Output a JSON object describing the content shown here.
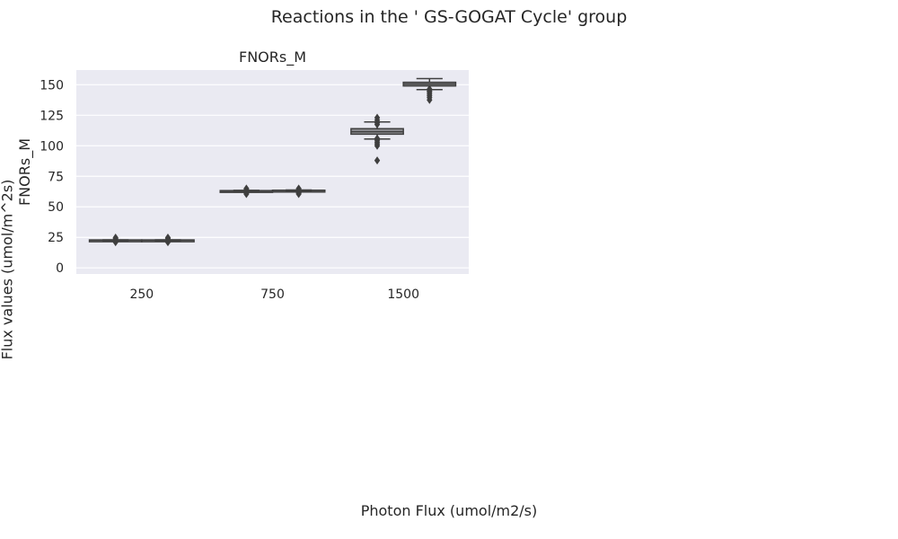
{
  "figure": {
    "suptitle": "Reactions in the ' GS-GOGAT Cycle' group",
    "xlabel": "Photon Flux (umol/m2/s)",
    "ylabel": "Flux values (umol/m^2s)"
  },
  "colors": {
    "panel_background": "#EAEAF2",
    "grid": "#FFFFFF",
    "box_edge": "#3F3F3F",
    "text": "#262626"
  },
  "chart_data": {
    "type": "box",
    "title": "FNORs_M",
    "xlabel": "",
    "ylabel": "FNORs_M",
    "categories": [
      "250",
      "750",
      "1500"
    ],
    "ylim": [
      -5,
      162
    ],
    "yticks": [
      0,
      25,
      50,
      75,
      100,
      125,
      150
    ],
    "grid": true,
    "legend": "none",
    "boxes": [
      {
        "category": "250",
        "slot": 0,
        "whisker_low": 22.3,
        "q1": 22.5,
        "median": 22.7,
        "q3": 22.9,
        "whisker_high": 23.0,
        "outliers": [
          21.0,
          21.6,
          22.0,
          24.0,
          24.8
        ]
      },
      {
        "category": "250",
        "slot": 1,
        "whisker_low": 22.3,
        "q1": 22.5,
        "median": 22.7,
        "q3": 22.9,
        "whisker_high": 23.0,
        "outliers": [
          21.0,
          21.6,
          22.0,
          24.0,
          24.8
        ]
      },
      {
        "category": "750",
        "slot": 0,
        "whisker_low": 62.5,
        "q1": 62.7,
        "median": 63.0,
        "q3": 63.3,
        "whisker_high": 63.5,
        "outliers": [
          60.5,
          61.3,
          62.0,
          64.2,
          65.0
        ]
      },
      {
        "category": "750",
        "slot": 1,
        "whisker_low": 63.0,
        "q1": 63.2,
        "median": 63.4,
        "q3": 63.6,
        "whisker_high": 63.8,
        "outliers": [
          60.5,
          61.3,
          62.0,
          64.3,
          65.0
        ]
      },
      {
        "category": "1500",
        "slot": 0,
        "whisker_low": 105.5,
        "q1": 109.5,
        "median": 111.5,
        "q3": 114.0,
        "whisker_high": 119.5,
        "outliers": [
          88.0,
          100.0,
          101.5,
          103.0,
          104.5,
          106.0,
          117.5,
          119.0,
          121.0,
          123.0
        ]
      },
      {
        "category": "1500",
        "slot": 1,
        "whisker_low": 146.0,
        "q1": 149.0,
        "median": 150.5,
        "q3": 152.0,
        "whisker_high": 155.0,
        "outliers": [
          137.5,
          139.5,
          141.0,
          142.5,
          144.0,
          145.0,
          146.5
        ]
      }
    ]
  }
}
